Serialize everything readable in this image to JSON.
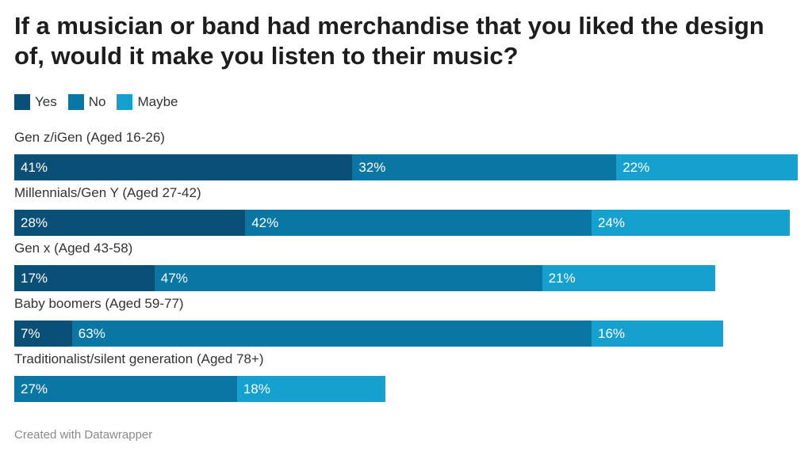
{
  "title": "If a musician or band had merchandise that you liked the design of, would it make you listen to their music?",
  "footer": "Created with Datawrapper",
  "colors": {
    "yes": "#0a4f75",
    "no": "#0a76a3",
    "maybe": "#16a0cd"
  },
  "chart_data": {
    "type": "bar",
    "orientation": "horizontal",
    "stacked": true,
    "legend_placement": "top-left",
    "grid": false,
    "series": [
      {
        "name": "Yes",
        "color": "#0a4f75"
      },
      {
        "name": "No",
        "color": "#0a76a3"
      },
      {
        "name": "Maybe",
        "color": "#16a0cd"
      }
    ],
    "categories": [
      {
        "label": "Gen z/iGen (Aged 16-26)",
        "values": [
          41,
          32,
          22
        ],
        "labels": [
          "41%",
          "32%",
          "22%"
        ]
      },
      {
        "label": "Millennials/Gen Y (Aged 27-42)",
        "values": [
          28,
          42,
          24
        ],
        "labels": [
          "28%",
          "42%",
          "24%"
        ]
      },
      {
        "label": "Gen x (Aged 43-58)",
        "values": [
          17,
          47,
          21
        ],
        "labels": [
          "17%",
          "47%",
          "21%"
        ]
      },
      {
        "label": "Baby boomers (Aged 59-77)",
        "values": [
          7,
          63,
          16
        ],
        "labels": [
          "7%",
          "63%",
          "16%"
        ]
      },
      {
        "label": "Traditionalist/silent generation (Aged 78+)",
        "values": [
          0,
          27,
          18
        ],
        "labels": [
          "",
          "27%",
          "18%"
        ]
      }
    ]
  }
}
